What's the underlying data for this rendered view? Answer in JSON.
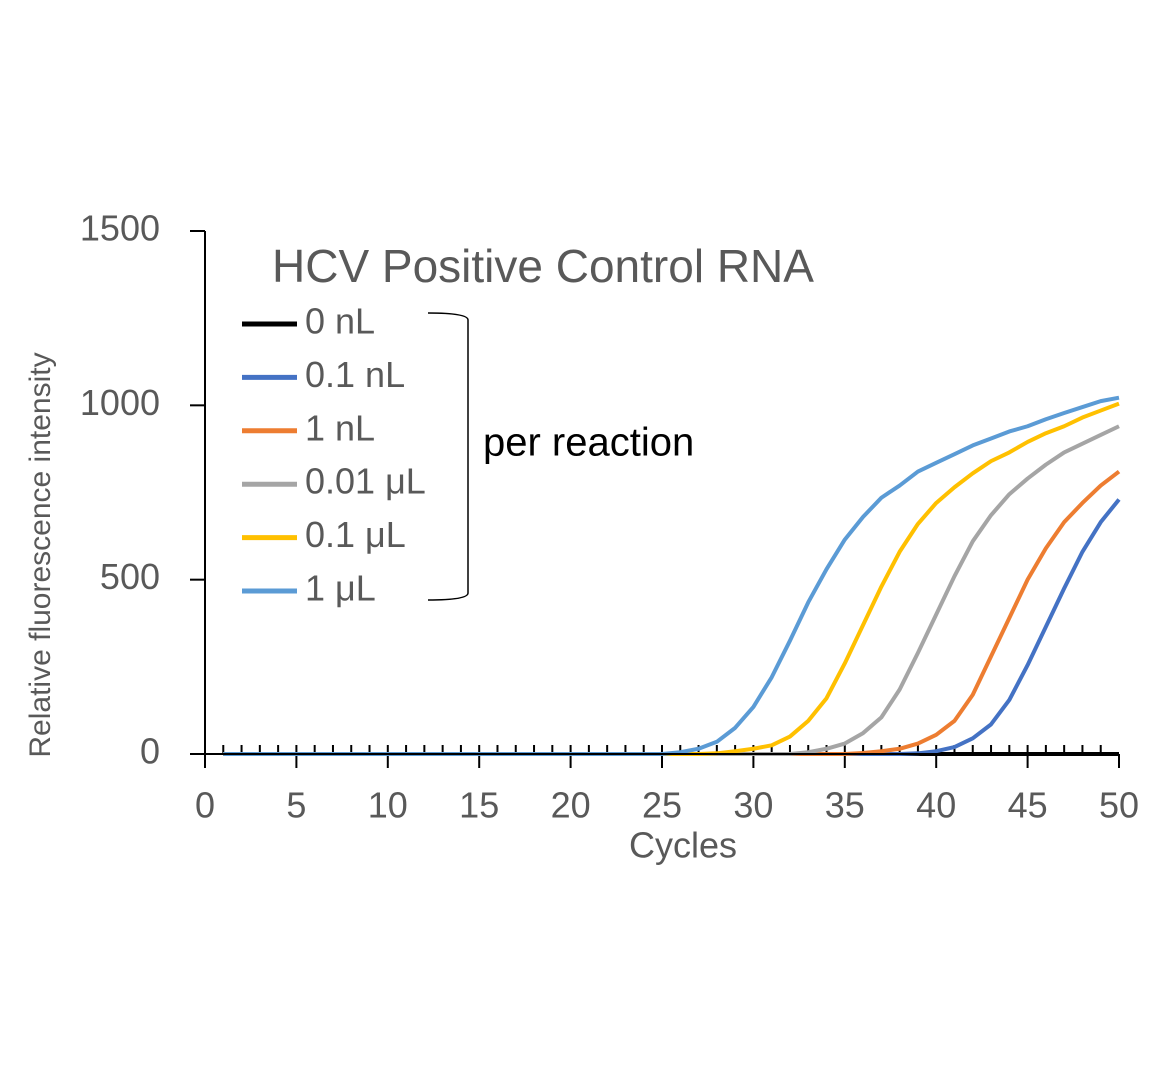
{
  "chart_data": {
    "type": "line",
    "title": "HCV Positive Control RNA",
    "annotation": "per reaction",
    "xlabel": "Cycles",
    "ylabel": "Relative fluorescence intensity",
    "x": [
      1,
      2,
      3,
      4,
      5,
      6,
      7,
      8,
      9,
      10,
      11,
      12,
      13,
      14,
      15,
      16,
      17,
      18,
      19,
      20,
      21,
      22,
      23,
      24,
      25,
      26,
      27,
      28,
      29,
      30,
      31,
      32,
      33,
      34,
      35,
      36,
      37,
      38,
      39,
      40,
      41,
      42,
      43,
      44,
      45,
      46,
      47,
      48,
      49,
      50
    ],
    "xlim": [
      0,
      50
    ],
    "xticks": [
      0,
      5,
      10,
      15,
      20,
      25,
      30,
      35,
      40,
      45,
      50
    ],
    "x_minor_tick_step": 1,
    "ylim": [
      0,
      1500
    ],
    "yticks": [
      0,
      500,
      1000,
      1500
    ],
    "series": [
      {
        "name": "0 nL",
        "color": "#000000",
        "values": [
          0,
          0,
          0,
          0,
          0,
          0,
          0,
          0,
          0,
          0,
          0,
          0,
          0,
          0,
          0,
          0,
          0,
          0,
          0,
          0,
          0,
          0,
          0,
          0,
          0,
          0,
          0,
          0,
          0,
          0,
          0,
          0,
          0,
          0,
          0,
          0,
          0,
          0,
          0,
          0,
          0,
          0,
          0,
          0,
          0,
          0,
          0,
          0,
          0,
          0
        ]
      },
      {
        "name": "0.1 nL",
        "color": "#4472c4",
        "values": [
          0,
          0,
          0,
          0,
          0,
          0,
          0,
          0,
          0,
          0,
          0,
          0,
          0,
          0,
          0,
          0,
          0,
          0,
          0,
          0,
          0,
          0,
          0,
          0,
          0,
          0,
          0,
          0,
          0,
          0,
          0,
          0,
          0,
          0,
          0,
          0,
          0,
          0,
          2,
          8,
          20,
          45,
          85,
          155,
          255,
          365,
          475,
          580,
          665,
          730
        ]
      },
      {
        "name": "1 nL",
        "color": "#ed7d31",
        "values": [
          0,
          0,
          0,
          0,
          0,
          0,
          0,
          0,
          0,
          0,
          0,
          0,
          0,
          0,
          0,
          0,
          0,
          0,
          0,
          0,
          0,
          0,
          0,
          0,
          0,
          0,
          0,
          0,
          0,
          0,
          0,
          0,
          0,
          0,
          0,
          3,
          8,
          15,
          30,
          55,
          95,
          170,
          280,
          390,
          500,
          590,
          665,
          720,
          770,
          810
        ]
      },
      {
        "name": "0.01 μL",
        "color": "#a5a5a5",
        "values": [
          0,
          0,
          0,
          0,
          0,
          0,
          0,
          0,
          0,
          0,
          0,
          0,
          0,
          0,
          0,
          0,
          0,
          0,
          0,
          0,
          0,
          0,
          0,
          0,
          0,
          0,
          0,
          0,
          0,
          0,
          0,
          0,
          5,
          15,
          30,
          60,
          105,
          185,
          290,
          400,
          510,
          610,
          685,
          745,
          790,
          830,
          865,
          890,
          915,
          940
        ]
      },
      {
        "name": "0.1 μL",
        "color": "#ffc000",
        "values": [
          0,
          0,
          0,
          0,
          0,
          0,
          0,
          0,
          0,
          0,
          0,
          0,
          0,
          0,
          0,
          0,
          0,
          0,
          0,
          0,
          0,
          0,
          0,
          0,
          0,
          0,
          0,
          2,
          8,
          15,
          25,
          50,
          95,
          160,
          260,
          370,
          480,
          580,
          660,
          720,
          765,
          805,
          840,
          865,
          895,
          920,
          940,
          965,
          985,
          1005
        ]
      },
      {
        "name": "1 μL",
        "color": "#5b9bd5",
        "values": [
          0,
          0,
          0,
          0,
          0,
          0,
          0,
          0,
          0,
          0,
          0,
          0,
          0,
          0,
          0,
          0,
          0,
          0,
          0,
          0,
          0,
          0,
          0,
          0,
          0,
          5,
          15,
          35,
          75,
          135,
          220,
          325,
          435,
          530,
          615,
          680,
          735,
          770,
          810,
          835,
          860,
          885,
          905,
          925,
          940,
          960,
          978,
          995,
          1012,
          1022
        ]
      }
    ]
  }
}
